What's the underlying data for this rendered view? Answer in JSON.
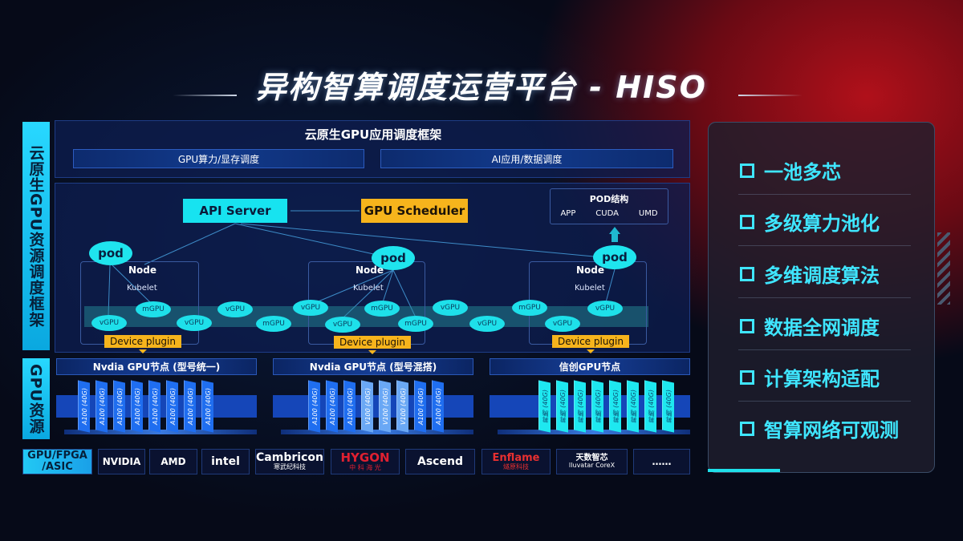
{
  "title": "异构智算调度运营平台 - HISO",
  "left_labels": {
    "framework": "云原生GPU资源调度框架",
    "gpu_resources": "GPU资源"
  },
  "app_framework": {
    "title": "云原生GPU应用调度框架",
    "bars": [
      "GPU算力/显存调度",
      "AI应用/数据调度"
    ]
  },
  "diagram": {
    "api_server": "API Server",
    "gpu_scheduler": "GPU Scheduler",
    "pod_structure": {
      "title": "POD结构",
      "items": [
        "APP",
        "CUDA",
        "UMD"
      ]
    },
    "pod_label": "pod",
    "node_label": "Node",
    "kubelet_label": "Kubelet",
    "device_plugin": "Device plugin",
    "units": [
      "mGPU",
      "vGPU",
      "vGPU",
      "vGPU",
      "mGPU",
      "vGPU",
      "vGPU",
      "mGPU",
      "mGPU",
      "vGPU",
      "vGPU",
      "mGPU",
      "vGPU",
      "vGPU"
    ]
  },
  "gpu_nodes": [
    {
      "title": "Nvdia GPU节点 (型号统一)",
      "cards": [
        "A100 (40G)",
        "A100 (40G)",
        "A100 (40G)",
        "A100 (40G)",
        "A100 (40G)",
        "A100 (40G)",
        "A100 (40G)",
        "A100 (40G)"
      ]
    },
    {
      "title": "Nvdia GPU节点 (型号混搭)",
      "cards": [
        "A100 (40G)",
        "A100 (40G)",
        "A100 (40G)",
        "V100 (40G)",
        "V100 (40G)",
        "V100 (40G)",
        "A100 (40G)",
        "A100 (40G)"
      ]
    },
    {
      "title": "信创GPU节点",
      "cards": [
        "昇腾 (40G)",
        "昇腾 (40G)",
        "昇腾 (40G)",
        "昇腾 (40G)",
        "昇腾 (40G)",
        "昇腾 (40G)",
        "昇腾 (40G)",
        "昇腾 (40G)"
      ]
    }
  ],
  "vendors": {
    "label": [
      "GPU/FPGA",
      "/ASIC"
    ],
    "items": [
      [
        "NVIDIA"
      ],
      [
        "AMD"
      ],
      [
        "intel"
      ],
      [
        "Cambricon",
        "寒武纪科技"
      ],
      [
        "HYGON",
        "中 科 海 光"
      ],
      [
        "Ascend"
      ],
      [
        "Enflame",
        "燧原科技"
      ],
      [
        "天数智芯",
        "Iluvatar CoreX"
      ],
      [
        "……"
      ]
    ]
  },
  "features": [
    "一池多芯",
    "多级算力池化",
    "多维调度算法",
    "数据全网调度",
    "计算架构适配",
    "智算网络可观测"
  ],
  "colors": {
    "cyan": "#17e3f0",
    "orange": "#f6b41c",
    "feature_text": "#3fe6ff",
    "card_blue": "#1f6ef0",
    "card_lightblue": "#6aa8f5",
    "card_cyan": "#1ee8f0"
  }
}
